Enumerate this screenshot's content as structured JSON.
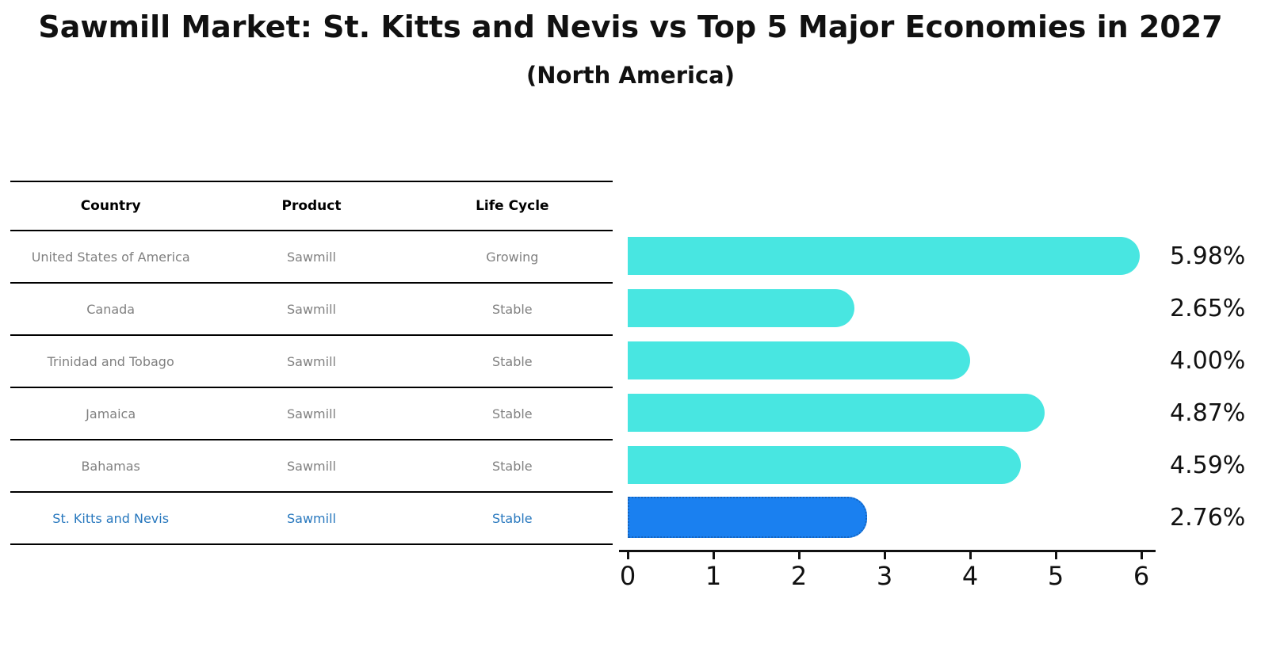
{
  "title": "Sawmill Market: St. Kitts and Nevis vs Top 5 Major Economies in 2027",
  "subtitle": "(North America)",
  "table": {
    "headers": [
      "Country",
      "Product",
      "Life Cycle"
    ],
    "rows": [
      {
        "country": "United States of America",
        "product": "Sawmill",
        "life_cycle": "Growing"
      },
      {
        "country": "Canada",
        "product": "Sawmill",
        "life_cycle": "Stable"
      },
      {
        "country": "Trinidad and Tobago",
        "product": "Sawmill",
        "life_cycle": "Stable"
      },
      {
        "country": "Jamaica",
        "product": "Sawmill",
        "life_cycle": "Stable"
      },
      {
        "country": "Bahamas",
        "product": "Sawmill",
        "life_cycle": "Stable"
      },
      {
        "country": "St. Kitts and Nevis",
        "product": "Sawmill",
        "life_cycle": "Stable"
      }
    ],
    "highlighted_row": "St. Kitts and Nevis"
  },
  "chart_data": {
    "type": "bar",
    "orientation": "horizontal",
    "categories": [
      "United States of America",
      "Canada",
      "Trinidad and Tobago",
      "Jamaica",
      "Bahamas",
      "St. Kitts and Nevis"
    ],
    "values": [
      5.98,
      2.65,
      4.0,
      4.87,
      4.59,
      2.76
    ],
    "value_labels": [
      "5.98%",
      "2.65%",
      "4.00%",
      "4.87%",
      "4.59%",
      "2.76%"
    ],
    "xlim": [
      0,
      6.2
    ],
    "xticks": [
      "0",
      "1",
      "2",
      "3",
      "4",
      "5",
      "6"
    ],
    "grid": false,
    "legend": false,
    "highlight_index": 5,
    "bar_color": "#48E6E1",
    "highlight_bar_color": "#1A80F0",
    "highlight_bar_border_color": "#1565C0"
  },
  "colors": {
    "table_text": "#808080",
    "table_header_text": "#000000",
    "highlight_text": "#2878BE",
    "axis": "#111111"
  }
}
